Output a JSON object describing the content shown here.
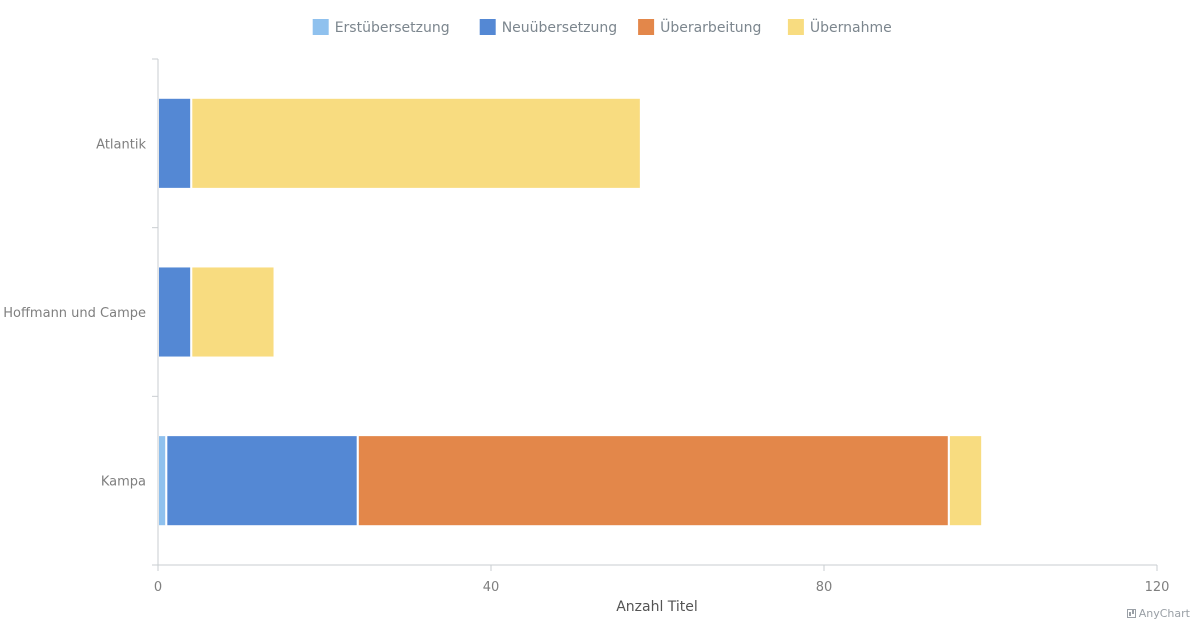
{
  "chart_data": {
    "type": "bar",
    "orientation": "horizontal",
    "stacked": true,
    "categories": [
      "Atlantik",
      "Hoffmann und Campe",
      "Kampa"
    ],
    "series": [
      {
        "name": "Erstübersetzung",
        "color": "#8fc1ee",
        "values": [
          0,
          0,
          1
        ]
      },
      {
        "name": "Neuübersetzung",
        "color": "#5488d4",
        "values": [
          4,
          4,
          23
        ]
      },
      {
        "name": "Überarbeitung",
        "color": "#e3874a",
        "values": [
          0,
          0,
          71
        ]
      },
      {
        "name": "Übernahme",
        "color": "#f8dc80",
        "values": [
          54,
          10,
          4
        ]
      }
    ],
    "xlabel": "Anzahl Titel",
    "ylabel": "",
    "xlim": [
      0,
      120
    ],
    "xticks": [
      "0",
      "40",
      "80",
      "120"
    ],
    "legend_position": "top-center",
    "grid": false
  },
  "credit": "AnyChart"
}
